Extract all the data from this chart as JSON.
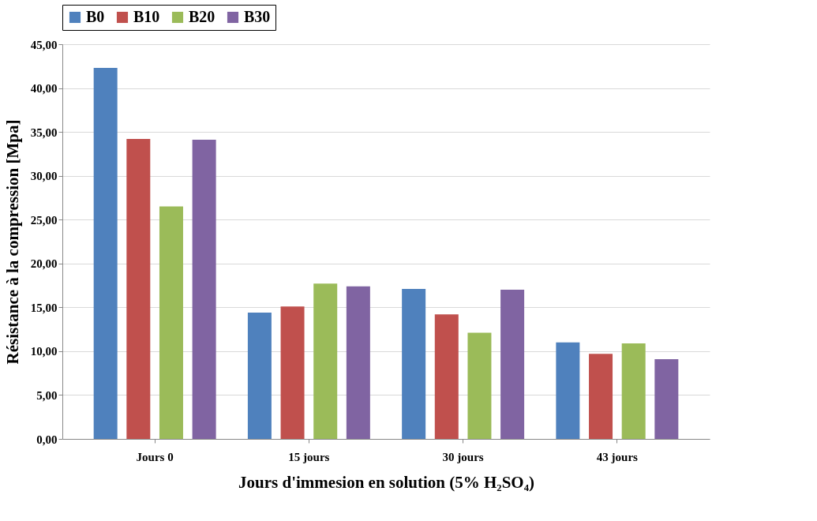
{
  "chart_data": {
    "type": "bar",
    "xlabel": "Jours d'immesion en solution (5% H₂SO₄)",
    "ylabel": "Résistance à la compression [Mpa]",
    "categories": [
      "Jours 0",
      "15 jours",
      "30 jours",
      "43 jours"
    ],
    "series": [
      {
        "name": "B0",
        "color": "#4f81bd",
        "values": [
          42.3,
          14.4,
          17.1,
          11.0
        ]
      },
      {
        "name": "B10",
        "color": "#c0504d",
        "values": [
          34.2,
          15.1,
          14.2,
          9.7
        ]
      },
      {
        "name": "B20",
        "color": "#9bbb59",
        "values": [
          26.5,
          17.7,
          12.1,
          10.9
        ]
      },
      {
        "name": "B30",
        "color": "#8064a2",
        "values": [
          34.1,
          17.4,
          17.0,
          9.1
        ]
      }
    ],
    "ylim": [
      0,
      45
    ],
    "yticks": [
      {
        "value": 0,
        "label": "0,00"
      },
      {
        "value": 5,
        "label": "5,00"
      },
      {
        "value": 10,
        "label": "10,00"
      },
      {
        "value": 15,
        "label": "15,00"
      },
      {
        "value": 20,
        "label": "20,00"
      },
      {
        "value": 25,
        "label": "25,00"
      },
      {
        "value": 30,
        "label": "30,00"
      },
      {
        "value": 35,
        "label": "35,00"
      },
      {
        "value": 40,
        "label": "40,00"
      },
      {
        "value": 45,
        "label": "45,00"
      }
    ],
    "grid": "y",
    "legend": "top"
  }
}
